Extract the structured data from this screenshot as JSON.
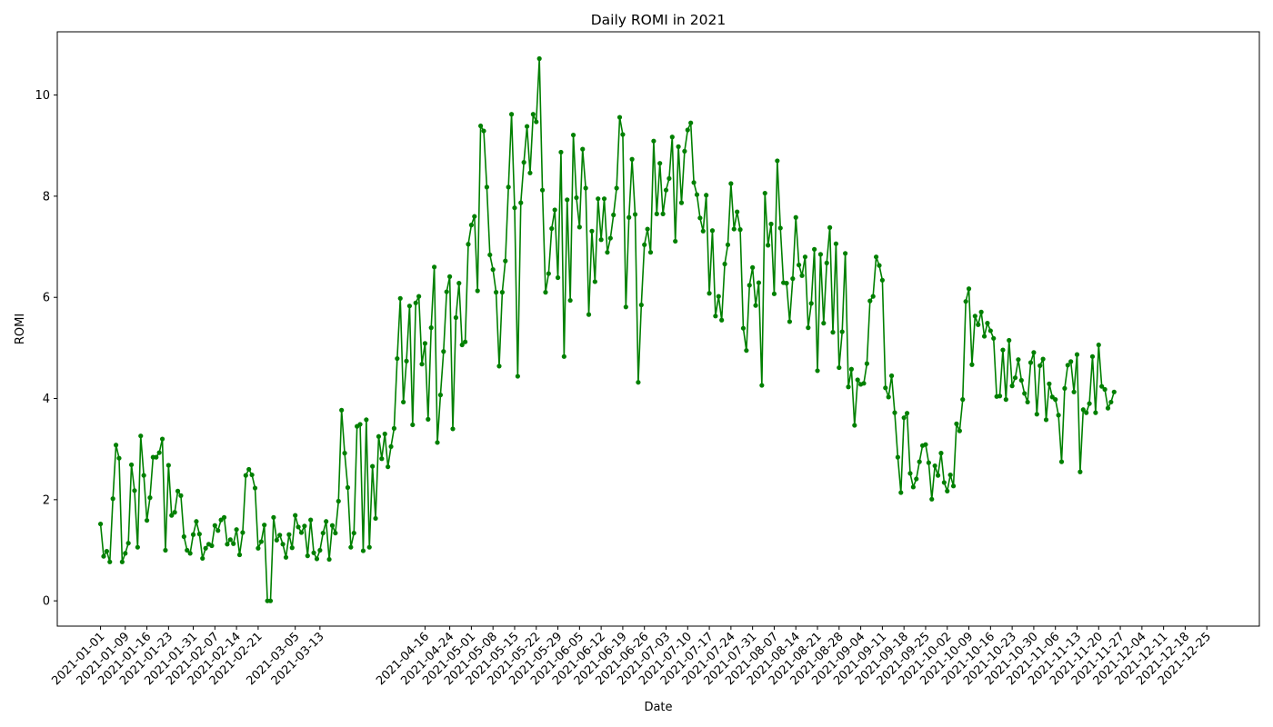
{
  "chart_data": {
    "type": "line",
    "title": "Daily ROMI in 2021",
    "xlabel": "Date",
    "ylabel": "ROMI",
    "ylim": [
      -0.5,
      11.25
    ],
    "yticks": [
      0,
      2,
      4,
      6,
      8,
      10
    ],
    "xlim": [
      "2020-12-18",
      "2022-01-11"
    ],
    "xtick_labels": [
      "2021-01-01",
      "2021-01-09",
      "2021-01-16",
      "2021-01-23",
      "2021-01-31",
      "2021-02-07",
      "2021-02-14",
      "2021-02-21",
      "2021-03-05",
      "2021-03-13",
      "2021-04-16",
      "2021-04-24",
      "2021-05-01",
      "2021-05-08",
      "2021-05-15",
      "2021-05-22",
      "2021-05-29",
      "2021-06-05",
      "2021-06-12",
      "2021-06-19",
      "2021-06-26",
      "2021-07-03",
      "2021-07-10",
      "2021-07-17",
      "2021-07-24",
      "2021-07-31",
      "2021-08-07",
      "2021-08-14",
      "2021-08-21",
      "2021-08-28",
      "2021-09-04",
      "2021-09-11",
      "2021-09-18",
      "2021-09-25",
      "2021-10-02",
      "2021-10-09",
      "2021-10-16",
      "2021-10-23",
      "2021-10-30",
      "2021-11-06",
      "2021-11-13",
      "2021-11-20",
      "2021-11-27",
      "2021-12-04",
      "2021-12-11",
      "2021-12-18",
      "2021-12-25"
    ],
    "grid": false,
    "line_color": "#008000",
    "marker": "circle",
    "series": [
      {
        "x_start": "2021-01-01",
        "frequency": "daily",
        "values": [
          1.52,
          0.88,
          0.98,
          0.77,
          2.02,
          3.08,
          2.82,
          0.77,
          0.94,
          1.14,
          2.69,
          2.18,
          1.06,
          3.26,
          2.48,
          1.59,
          2.04,
          2.84,
          2.84,
          2.93,
          3.2,
          1.0,
          2.68,
          1.69,
          1.75,
          2.17,
          2.08,
          1.27,
          1.0,
          0.94,
          1.31,
          1.57,
          1.32,
          0.84,
          1.04,
          1.12,
          1.09,
          1.49,
          1.39,
          1.6,
          1.65,
          1.12,
          1.21,
          1.13,
          1.41,
          0.91,
          1.35,
          2.48,
          2.6,
          2.49,
          2.23,
          1.04,
          1.17,
          1.5,
          0.0,
          0.0,
          1.65,
          1.2,
          1.3,
          1.12,
          0.86,
          1.31,
          1.05,
          1.69,
          1.46,
          1.35,
          1.48,
          0.89,
          1.6,
          0.95,
          0.83,
          1.0,
          1.34,
          1.57,
          0.82,
          1.49,
          1.34,
          1.97,
          3.77,
          2.92,
          2.24,
          1.06,
          1.34,
          3.45,
          3.49,
          0.99,
          3.58,
          1.06,
          2.66,
          1.63,
          3.25,
          2.81,
          3.3,
          2.65,
          3.05,
          3.41,
          4.79,
          5.98,
          3.93,
          4.74,
          5.83,
          3.48,
          5.89,
          6.02,
          4.68,
          5.09,
          3.59,
          5.4,
          6.6,
          3.13,
          4.07,
          4.93,
          6.11,
          6.41,
          3.4,
          5.6,
          6.28,
          5.06,
          5.12,
          7.05,
          7.43,
          7.6,
          6.13,
          9.39,
          9.29,
          8.18,
          6.84,
          6.55,
          6.1,
          4.64,
          6.1,
          6.72,
          8.18,
          9.62,
          7.77,
          4.44,
          7.87,
          8.67,
          9.38,
          8.46,
          9.62,
          9.47,
          10.72,
          8.12,
          6.1,
          6.47,
          7.36,
          7.73,
          6.39,
          8.87,
          4.83,
          7.93,
          5.94,
          9.21,
          7.97,
          7.39,
          8.93,
          8.16,
          5.66,
          7.31,
          6.31,
          7.95,
          7.14,
          7.95,
          6.89,
          7.17,
          7.63,
          8.16,
          9.56,
          9.22,
          5.81,
          7.58,
          8.73,
          7.64,
          4.32,
          5.85,
          7.04,
          7.35,
          6.89,
          9.09,
          7.65,
          8.65,
          7.65,
          8.12,
          8.35,
          9.17,
          7.11,
          8.98,
          7.87,
          8.89,
          9.31,
          9.45,
          8.27,
          8.03,
          7.57,
          7.31,
          8.02,
          6.08,
          7.32,
          5.63,
          6.02,
          5.55,
          6.66,
          7.04,
          8.25,
          7.35,
          7.69,
          7.34,
          5.39,
          4.95,
          6.24,
          6.59,
          5.84,
          6.29,
          4.26,
          8.06,
          7.03,
          7.45,
          6.07,
          8.7,
          7.37,
          6.29,
          6.28,
          5.52,
          6.37,
          7.58,
          6.64,
          6.43,
          6.8,
          5.4,
          5.88,
          6.95,
          4.55,
          6.85,
          5.49,
          6.68,
          7.38,
          5.31,
          7.06,
          4.61,
          5.32,
          6.87,
          4.23,
          4.58,
          3.47,
          4.37,
          4.28,
          4.3,
          4.69,
          5.93,
          6.02,
          6.8,
          6.63,
          6.34,
          4.21,
          4.03,
          4.45,
          3.72,
          2.84,
          2.14,
          3.62,
          3.71,
          2.52,
          2.25,
          2.41,
          2.75,
          3.07,
          3.09,
          2.73,
          2.01,
          2.67,
          2.48,
          2.92,
          2.34,
          2.17,
          2.49,
          2.27,
          3.5,
          3.36,
          3.98,
          5.92,
          6.17,
          4.67,
          5.63,
          5.46,
          5.71,
          5.23,
          5.49,
          5.34,
          5.19,
          4.04,
          4.05,
          4.96,
          3.98,
          5.15,
          4.25,
          4.41,
          4.77,
          4.36,
          4.1,
          3.93,
          4.71,
          4.91,
          3.69,
          4.65,
          4.78,
          3.58,
          4.29,
          4.03,
          3.98,
          3.67,
          2.75,
          4.2,
          4.66,
          4.73,
          4.13,
          4.87,
          2.55,
          3.78,
          3.72,
          3.9,
          4.83,
          3.72,
          5.06,
          4.24,
          4.18,
          3.81,
          3.93,
          4.13
        ]
      }
    ]
  }
}
